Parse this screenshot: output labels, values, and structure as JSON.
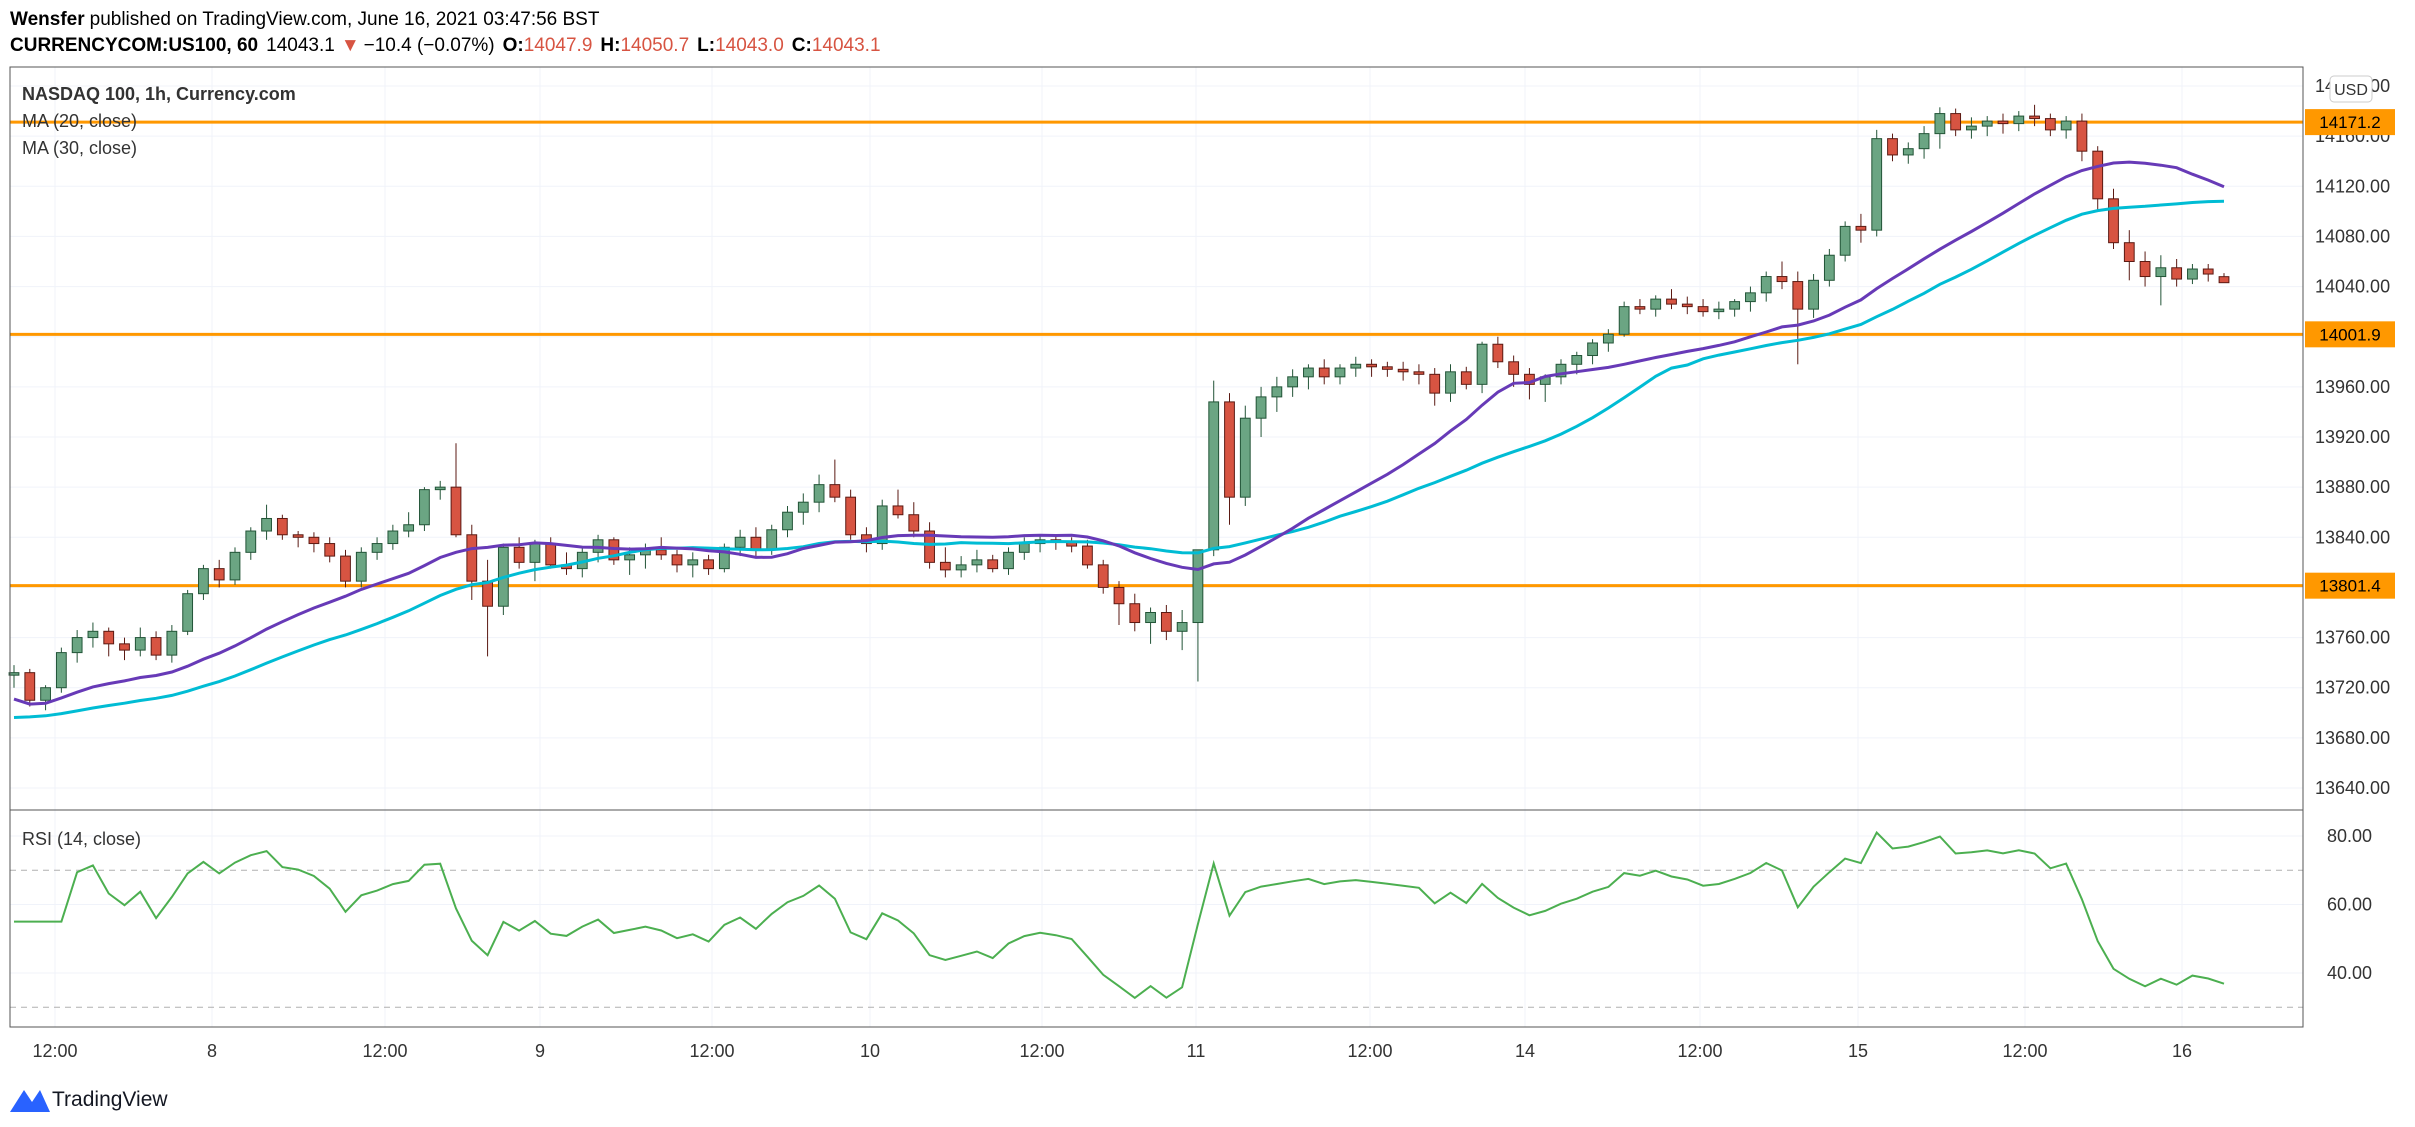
{
  "header": {
    "author": "Wensfer",
    "published_text": "published on TradingView.com, June 16, 2021 03:47:56 BST",
    "symbol": "CURRENCYCOM:US100, 60",
    "last": "14043.1",
    "change_arrow": "▼",
    "change": "−10.4 (−0.07%)",
    "o_label": "O:",
    "o_value": "14047.9",
    "h_label": "H:",
    "h_value": "14050.7",
    "l_label": "L:",
    "l_value": "14043.0",
    "c_label": "C:",
    "c_value": "14043.1"
  },
  "legend": {
    "title": "NASDAQ 100, 1h, Currency.com",
    "ma20": "MA (20, close)",
    "ma30": "MA (30, close)",
    "rsi": "RSI (14, close)"
  },
  "currency": "USD",
  "footer": {
    "brand": "TradingView"
  },
  "colors": {
    "up": "#6ba583",
    "up_border": "#225437",
    "down": "#d75442",
    "down_border": "#5b1a13",
    "ma20": "#673ab7",
    "ma30": "#00bcd4",
    "rsi": "#4caf50",
    "level": "#ff9800",
    "grid": "#f0f3fa",
    "frame": "#555555"
  },
  "chart_data": {
    "type": "candlestick",
    "timeframe": "1h",
    "price_axis": {
      "min": 13620,
      "max": 14220,
      "ticks": [
        13640,
        13680,
        13720,
        13760,
        13800,
        13840,
        13880,
        13920,
        13960,
        14000,
        14040,
        14080,
        14120,
        14160,
        14200
      ]
    },
    "time_labels": [
      "12:00",
      "8",
      "12:00",
      "9",
      "12:00",
      "10",
      "12:00",
      "11",
      "12:00",
      "14",
      "12:00",
      "15",
      "12:00",
      "16"
    ],
    "levels": [
      {
        "value": 14171.2,
        "label": "14171.2"
      },
      {
        "value": 14001.9,
        "label": "14001.9"
      },
      {
        "value": 13801.4,
        "label": "13801.4"
      }
    ],
    "rsi_axis": {
      "min": 25,
      "max": 85,
      "ticks": [
        40,
        60,
        80
      ],
      "bands": [
        70,
        30
      ]
    },
    "candles": [
      [
        13730,
        13738,
        13720,
        13732
      ],
      [
        13732,
        13735,
        13705,
        13710
      ],
      [
        13710,
        13722,
        13702,
        13720
      ],
      [
        13720,
        13752,
        13716,
        13748
      ],
      [
        13748,
        13766,
        13740,
        13760
      ],
      [
        13760,
        13772,
        13752,
        13765
      ],
      [
        13765,
        13768,
        13745,
        13755
      ],
      [
        13755,
        13760,
        13742,
        13750
      ],
      [
        13750,
        13768,
        13745,
        13760
      ],
      [
        13760,
        13765,
        13742,
        13746
      ],
      [
        13746,
        13770,
        13740,
        13765
      ],
      [
        13765,
        13798,
        13762,
        13795
      ],
      [
        13795,
        13818,
        13790,
        13815
      ],
      [
        13815,
        13822,
        13800,
        13806
      ],
      [
        13806,
        13832,
        13802,
        13828
      ],
      [
        13828,
        13848,
        13822,
        13845
      ],
      [
        13845,
        13866,
        13838,
        13855
      ],
      [
        13855,
        13858,
        13838,
        13842
      ],
      [
        13842,
        13845,
        13832,
        13840
      ],
      [
        13840,
        13844,
        13828,
        13835
      ],
      [
        13835,
        13840,
        13820,
        13825
      ],
      [
        13825,
        13830,
        13800,
        13805
      ],
      [
        13805,
        13832,
        13800,
        13828
      ],
      [
        13828,
        13840,
        13822,
        13835
      ],
      [
        13835,
        13850,
        13830,
        13845
      ],
      [
        13845,
        13860,
        13840,
        13850
      ],
      [
        13850,
        13880,
        13845,
        13878
      ],
      [
        13878,
        13885,
        13870,
        13880
      ],
      [
        13880,
        13915,
        13840,
        13842
      ],
      [
        13842,
        13850,
        13790,
        13805
      ],
      [
        13805,
        13822,
        13745,
        13785
      ],
      [
        13785,
        13835,
        13778,
        13832
      ],
      [
        13832,
        13840,
        13815,
        13820
      ],
      [
        13820,
        13838,
        13805,
        13835
      ],
      [
        13835,
        13840,
        13815,
        13818
      ],
      [
        13818,
        13828,
        13810,
        13815
      ],
      [
        13815,
        13832,
        13808,
        13828
      ],
      [
        13828,
        13842,
        13820,
        13838
      ],
      [
        13838,
        13840,
        13818,
        13822
      ],
      [
        13822,
        13832,
        13810,
        13826
      ],
      [
        13826,
        13835,
        13815,
        13830
      ],
      [
        13830,
        13840,
        13822,
        13826
      ],
      [
        13826,
        13830,
        13812,
        13818
      ],
      [
        13818,
        13828,
        13808,
        13822
      ],
      [
        13822,
        13826,
        13810,
        13815
      ],
      [
        13815,
        13835,
        13812,
        13832
      ],
      [
        13832,
        13846,
        13825,
        13840
      ],
      [
        13840,
        13848,
        13825,
        13830
      ],
      [
        13830,
        13850,
        13826,
        13846
      ],
      [
        13846,
        13865,
        13840,
        13860
      ],
      [
        13860,
        13875,
        13850,
        13868
      ],
      [
        13868,
        13890,
        13860,
        13882
      ],
      [
        13882,
        13902,
        13868,
        13872
      ],
      [
        13872,
        13878,
        13838,
        13842
      ],
      [
        13842,
        13848,
        13828,
        13835
      ],
      [
        13835,
        13870,
        13830,
        13865
      ],
      [
        13865,
        13878,
        13855,
        13858
      ],
      [
        13858,
        13868,
        13840,
        13845
      ],
      [
        13845,
        13852,
        13815,
        13820
      ],
      [
        13820,
        13832,
        13808,
        13814
      ],
      [
        13814,
        13825,
        13808,
        13818
      ],
      [
        13818,
        13830,
        13812,
        13822
      ],
      [
        13822,
        13826,
        13812,
        13815
      ],
      [
        13815,
        13832,
        13810,
        13828
      ],
      [
        13828,
        13840,
        13822,
        13835
      ],
      [
        13835,
        13842,
        13828,
        13838
      ],
      [
        13838,
        13842,
        13830,
        13836
      ],
      [
        13836,
        13840,
        13828,
        13833
      ],
      [
        13833,
        13838,
        13815,
        13818
      ],
      [
        13818,
        13822,
        13795,
        13800
      ],
      [
        13800,
        13805,
        13770,
        13787
      ],
      [
        13787,
        13795,
        13765,
        13772
      ],
      [
        13772,
        13784,
        13755,
        13780
      ],
      [
        13780,
        13786,
        13758,
        13765
      ],
      [
        13765,
        13782,
        13750,
        13772
      ],
      [
        13772,
        13830,
        13725,
        13830
      ],
      [
        13830,
        13965,
        13825,
        13948
      ],
      [
        13948,
        13955,
        13850,
        13872
      ],
      [
        13872,
        13945,
        13865,
        13935
      ],
      [
        13935,
        13960,
        13920,
        13952
      ],
      [
        13952,
        13968,
        13940,
        13960
      ],
      [
        13960,
        13974,
        13952,
        13968
      ],
      [
        13968,
        13978,
        13958,
        13975
      ],
      [
        13975,
        13982,
        13962,
        13968
      ],
      [
        13968,
        13978,
        13962,
        13975
      ],
      [
        13975,
        13984,
        13968,
        13978
      ],
      [
        13978,
        13982,
        13968,
        13976
      ],
      [
        13976,
        13980,
        13968,
        13974
      ],
      [
        13974,
        13980,
        13965,
        13972
      ],
      [
        13972,
        13978,
        13962,
        13970
      ],
      [
        13970,
        13975,
        13945,
        13955
      ],
      [
        13955,
        13978,
        13948,
        13972
      ],
      [
        13972,
        13976,
        13958,
        13962
      ],
      [
        13962,
        13996,
        13955,
        13994
      ],
      [
        13994,
        14000,
        13975,
        13980
      ],
      [
        13980,
        13985,
        13960,
        13970
      ],
      [
        13970,
        13975,
        13950,
        13962
      ],
      [
        13962,
        13970,
        13948,
        13968
      ],
      [
        13968,
        13982,
        13962,
        13978
      ],
      [
        13978,
        13988,
        13970,
        13985
      ],
      [
        13985,
        13998,
        13978,
        13995
      ],
      [
        13995,
        14006,
        13988,
        14002
      ],
      [
        14002,
        14028,
        14000,
        14024
      ],
      [
        14024,
        14030,
        14018,
        14022
      ],
      [
        14022,
        14033,
        14016,
        14030
      ],
      [
        14030,
        14038,
        14022,
        14026
      ],
      [
        14026,
        14032,
        14018,
        14024
      ],
      [
        14024,
        14030,
        14016,
        14020
      ],
      [
        14020,
        14028,
        14014,
        14022
      ],
      [
        14022,
        14030,
        14016,
        14028
      ],
      [
        14028,
        14040,
        14020,
        14035
      ],
      [
        14035,
        14052,
        14028,
        14048
      ],
      [
        14048,
        14060,
        14038,
        14044
      ],
      [
        14044,
        14052,
        13978,
        14022
      ],
      [
        14022,
        14050,
        14015,
        14045
      ],
      [
        14045,
        14070,
        14040,
        14065
      ],
      [
        14065,
        14092,
        14060,
        14088
      ],
      [
        14088,
        14098,
        14075,
        14085
      ],
      [
        14085,
        14165,
        14080,
        14158
      ],
      [
        14158,
        14162,
        14140,
        14145
      ],
      [
        14145,
        14155,
        14138,
        14150
      ],
      [
        14150,
        14168,
        14142,
        14162
      ],
      [
        14162,
        14183,
        14150,
        14178
      ],
      [
        14178,
        14182,
        14160,
        14165
      ],
      [
        14165,
        14175,
        14158,
        14168
      ],
      [
        14168,
        14176,
        14160,
        14172
      ],
      [
        14172,
        14178,
        14162,
        14170
      ],
      [
        14170,
        14180,
        14164,
        14176
      ],
      [
        14176,
        14185,
        14168,
        14174
      ],
      [
        14174,
        14178,
        14160,
        14165
      ],
      [
        14165,
        14176,
        14158,
        14172
      ],
      [
        14172,
        14178,
        14140,
        14148
      ],
      [
        14148,
        14152,
        14100,
        14110
      ],
      [
        14110,
        14118,
        14070,
        14075
      ],
      [
        14075,
        14085,
        14045,
        14060
      ],
      [
        14060,
        14068,
        14040,
        14048
      ],
      [
        14048,
        14065,
        14025,
        14055
      ],
      [
        14055,
        14062,
        14040,
        14046
      ],
      [
        14046,
        14058,
        14042,
        14054
      ],
      [
        14054,
        14058,
        14044,
        14050
      ],
      [
        14047.9,
        14050.7,
        14043,
        14043.1
      ]
    ]
  }
}
